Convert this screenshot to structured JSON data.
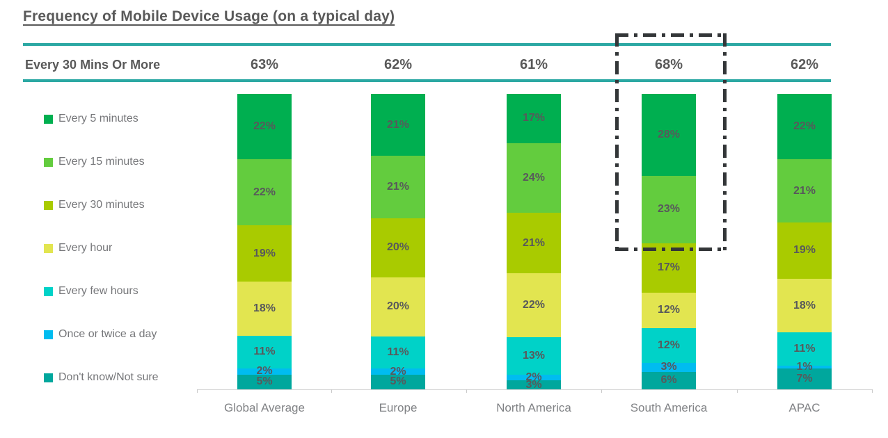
{
  "title": "Frequency of Mobile Device Usage (on a typical day)",
  "summary_row": {
    "label": "Every 30 Mins Or More",
    "values": [
      "63%",
      "62%",
      "61%",
      "68%",
      "62%"
    ]
  },
  "colors": {
    "accent_teal": "#2BA8A3",
    "title_gray": "#595959",
    "highlight_box": "#333638"
  },
  "chart_data": {
    "type": "bar",
    "stacked": true,
    "title": "Frequency of Mobile Device Usage (on a typical day)",
    "categories": [
      "Global Average",
      "Europe",
      "North America",
      "South America",
      "APAC"
    ],
    "series": [
      {
        "name": "Every 5 minutes",
        "color": "#00AF50",
        "values": [
          22,
          21,
          17,
          28,
          22
        ]
      },
      {
        "name": "Every 15 minutes",
        "color": "#63CC3E",
        "values": [
          22,
          21,
          24,
          23,
          21
        ]
      },
      {
        "name": "Every 30 minutes",
        "color": "#A9CB00",
        "values": [
          19,
          20,
          21,
          17,
          19
        ]
      },
      {
        "name": "Every hour",
        "color": "#E2E550",
        "values": [
          18,
          20,
          22,
          12,
          18
        ]
      },
      {
        "name": "Every few hours",
        "color": "#00D2C8",
        "values": [
          11,
          11,
          13,
          12,
          11
        ]
      },
      {
        "name": "Once or twice a day",
        "color": "#00BCF0",
        "values": [
          2,
          2,
          2,
          3,
          1
        ]
      },
      {
        "name": "Don't know/Not sure",
        "color": "#00A79D",
        "values": [
          5,
          5,
          3,
          6,
          7
        ]
      }
    ],
    "value_label_format": "{v}%",
    "legend_position": "left",
    "annotations": {
      "summary_label": "Every 30 Mins Or More",
      "summary_values": [
        63,
        62,
        61,
        68,
        62
      ],
      "highlight": "South America column outlined with black dash-dot box"
    }
  }
}
